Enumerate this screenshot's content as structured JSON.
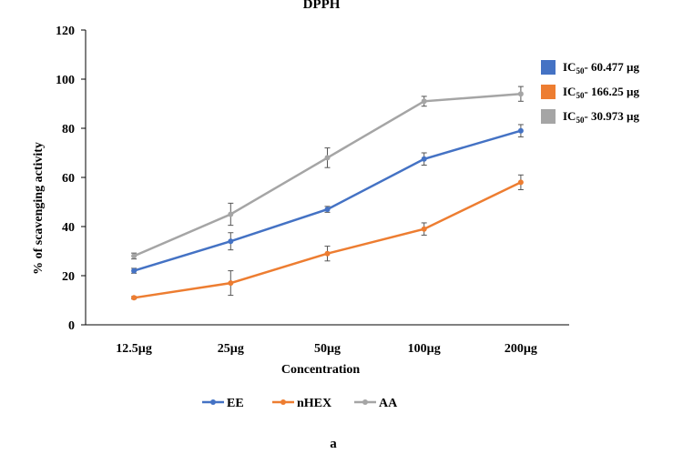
{
  "chart_data": {
    "type": "line",
    "title": "DPPH",
    "xlabel": "Concentration",
    "ylabel": "% of scavenging activity",
    "categories": [
      "12.5µg",
      "25µg",
      "50µg",
      "100µg",
      "200µg"
    ],
    "ylim": [
      0,
      120
    ],
    "yticks": [
      0,
      20,
      40,
      60,
      80,
      100,
      120
    ],
    "grid": false,
    "legend_position": "bottom",
    "series": [
      {
        "name": "EE",
        "color": "#4472C4",
        "values": [
          22,
          34,
          47,
          67.5,
          79
        ],
        "errors": [
          1,
          3.5,
          1.2,
          2.5,
          2.5
        ]
      },
      {
        "name": "nHEX",
        "color": "#ED7D31",
        "values": [
          11,
          17,
          29,
          39,
          58
        ],
        "errors": [
          0.5,
          5,
          3,
          2.5,
          3
        ]
      },
      {
        "name": "AA",
        "color": "#A5A5A5",
        "values": [
          28,
          45,
          68,
          91,
          94
        ],
        "errors": [
          1.2,
          4.5,
          4,
          2,
          3
        ]
      }
    ],
    "annotations": [
      {
        "base": "IC",
        "sub": "50",
        "rest": "- 60.477 µg",
        "color": "#4472C4"
      },
      {
        "base": "IC",
        "sub": "50",
        "rest": "- 166.25 µg",
        "color": "#ED7D31"
      },
      {
        "base": "IC",
        "sub": "50",
        "rest": "- 30.973 µg",
        "color": "#A5A5A5"
      }
    ],
    "panel_label": "a"
  }
}
